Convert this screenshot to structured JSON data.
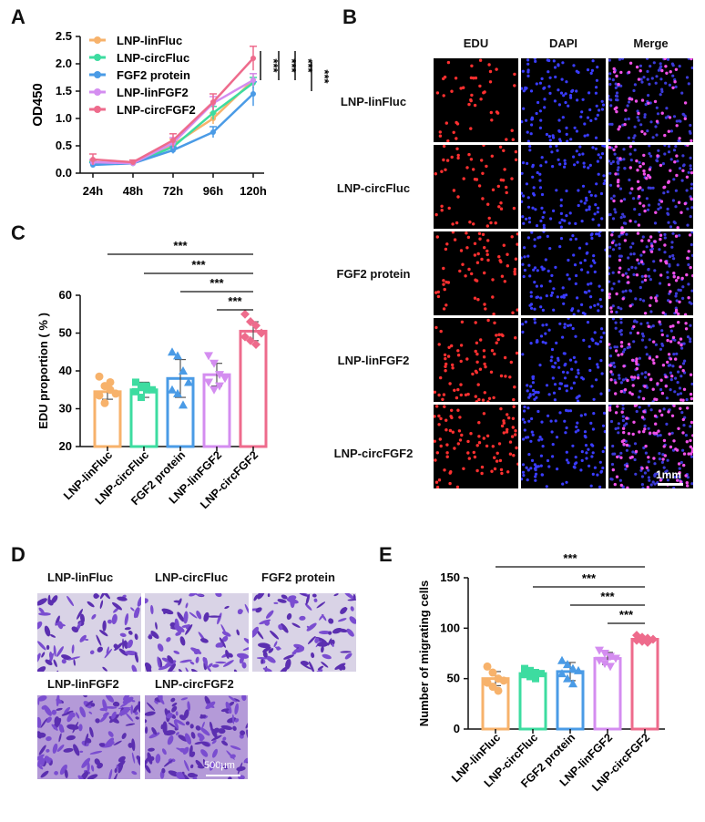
{
  "panels": {
    "a": "A",
    "b": "B",
    "c": "C",
    "d": "D",
    "e": "E"
  },
  "groups": [
    "LNP-linFluc",
    "LNP-circFluc",
    "FGF2 protein",
    "LNP-linFGF2",
    "LNP-circFGF2"
  ],
  "colors": {
    "LNP-linFluc": "#f7b26b",
    "LNP-circFluc": "#3ddca0",
    "FGF2 protein": "#4a9be6",
    "LNP-linFGF2": "#d48df0",
    "LNP-circFGF2": "#ee6b8c"
  },
  "significance": "***",
  "panel_b": {
    "columns": [
      "EDU",
      "DAPI",
      "Merge"
    ],
    "rows": [
      "LNP-linFluc",
      "LNP-circFluc",
      "FGF2 protein",
      "LNP-linFGF2",
      "LNP-circFGF2"
    ],
    "scalebar": "1mm"
  },
  "panel_d": {
    "labels": [
      "LNP-linFluc",
      "LNP-circFluc",
      "FGF2 protein",
      "LNP-linFGF2",
      "LNP-circFGF2"
    ],
    "scalebar": "500μm"
  },
  "chart_data": [
    {
      "type": "line",
      "panel": "A",
      "ylabel": "OD450",
      "xlabel": "",
      "x": [
        "24h",
        "48h",
        "72h",
        "96h",
        "120h"
      ],
      "ylim": [
        0,
        2.5
      ],
      "yticks": [
        "0.0",
        "0.5",
        "1.0",
        "1.5",
        "2.0",
        "2.5"
      ],
      "legend": "top-left",
      "series": [
        {
          "name": "LNP-linFluc",
          "values": [
            0.18,
            0.18,
            0.52,
            1.0,
            1.7
          ],
          "err": [
            0.05,
            0.03,
            0.1,
            0.1,
            0.12
          ]
        },
        {
          "name": "LNP-circFluc",
          "values": [
            0.17,
            0.18,
            0.48,
            1.1,
            1.65
          ],
          "err": [
            0.04,
            0.03,
            0.1,
            0.12,
            0.1
          ]
        },
        {
          "name": "FGF2 protein",
          "values": [
            0.15,
            0.18,
            0.42,
            0.75,
            1.45
          ],
          "err": [
            0.04,
            0.03,
            0.06,
            0.1,
            0.22
          ]
        },
        {
          "name": "LNP-linFGF2",
          "values": [
            0.2,
            0.18,
            0.55,
            1.28,
            1.7
          ],
          "err": [
            0.05,
            0.03,
            0.1,
            0.12,
            0.12
          ]
        },
        {
          "name": "LNP-circFGF2",
          "values": [
            0.25,
            0.2,
            0.6,
            1.3,
            2.1
          ],
          "err": [
            0.1,
            0.04,
            0.12,
            0.15,
            0.22
          ]
        }
      ]
    },
    {
      "type": "bar",
      "panel": "C",
      "ylabel": "EDU proportion ( % )",
      "categories": [
        "LNP-linFluc",
        "LNP-circFluc",
        "FGF2 protein",
        "LNP-linFGF2",
        "LNP-circFGF2"
      ],
      "values": [
        34.5,
        35,
        38,
        39,
        50.5
      ],
      "err": [
        2.0,
        2.0,
        5.0,
        3.0,
        2.5
      ],
      "points": [
        [
          38.5,
          36,
          35,
          34,
          33.5,
          31.5,
          37
        ],
        [
          37,
          36,
          35,
          35,
          34.5,
          33,
          36
        ],
        [
          45,
          44,
          40,
          37,
          35,
          34,
          31
        ],
        [
          44,
          42,
          39,
          38,
          37,
          35,
          36
        ],
        [
          55,
          53,
          52,
          50,
          49,
          48,
          47
        ]
      ],
      "ylim": [
        20,
        60
      ],
      "yticks": [
        "20",
        "30",
        "40",
        "50",
        "60"
      ]
    },
    {
      "type": "bar",
      "panel": "E",
      "ylabel": "Number of migrating cells",
      "categories": [
        "LNP-linFluc",
        "LNP-circFluc",
        "FGF2 protein",
        "LNP-linFGF2",
        "LNP-circFGF2"
      ],
      "values": [
        50,
        55,
        57,
        70,
        89
      ],
      "err": [
        7,
        4,
        9,
        6,
        2
      ],
      "points": [
        [
          62,
          56,
          50,
          48,
          46,
          42,
          38
        ],
        [
          60,
          58,
          56,
          55,
          54,
          52,
          50
        ],
        [
          68,
          64,
          60,
          58,
          55,
          50,
          45
        ],
        [
          78,
          75,
          72,
          70,
          68,
          65,
          62
        ],
        [
          93,
          91,
          90,
          89,
          88,
          87,
          86
        ]
      ],
      "ylim": [
        0,
        150
      ],
      "yticks": [
        "0",
        "50",
        "100",
        "150"
      ]
    }
  ]
}
